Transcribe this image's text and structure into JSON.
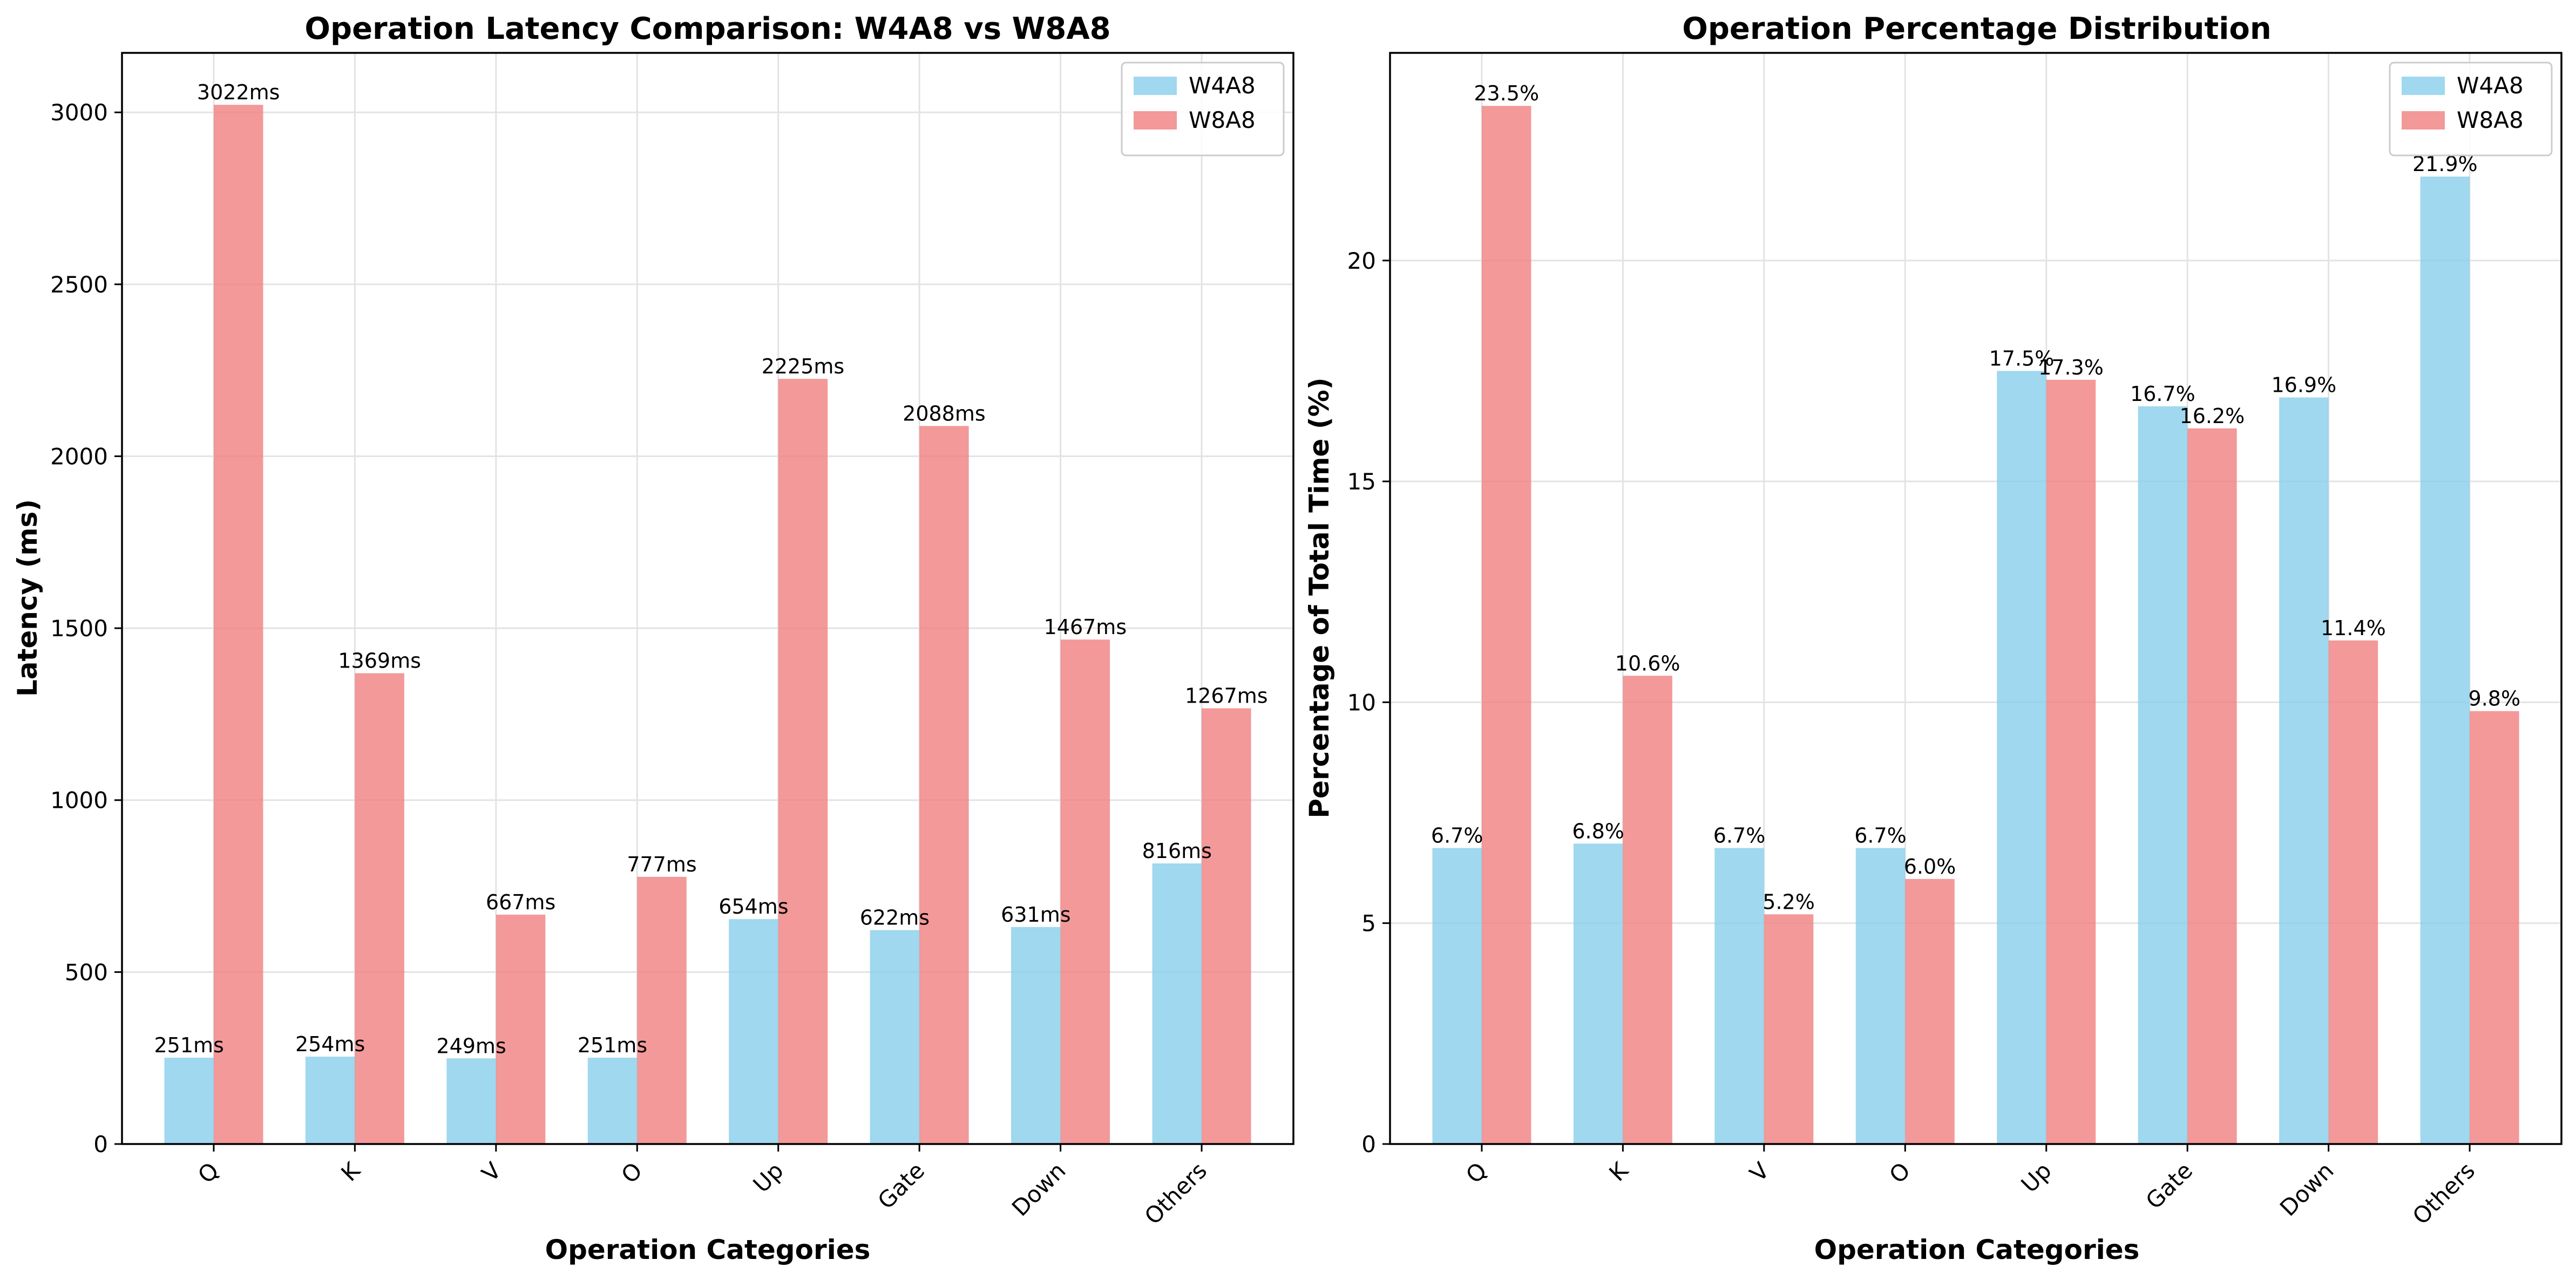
{
  "chart_data": [
    {
      "type": "bar",
      "title": "Operation Latency Comparison: W4A8 vs W8A8",
      "xlabel": "Operation Categories",
      "ylabel": "Latency (ms)",
      "categories": [
        "Q",
        "K",
        "V",
        "O",
        "Up",
        "Gate",
        "Down",
        "Others"
      ],
      "series": [
        {
          "name": "W4A8",
          "color": "#87CEEB",
          "values": [
            251,
            254,
            249,
            251,
            654,
            622,
            631,
            816
          ]
        },
        {
          "name": "W8A8",
          "color": "#F08080",
          "values": [
            3022,
            1369,
            667,
            777,
            2225,
            2088,
            1467,
            1267
          ]
        }
      ],
      "data_labels": {
        "W4A8": [
          "251ms",
          "254ms",
          "249ms",
          "251ms",
          "654ms",
          "622ms",
          "631ms",
          "816ms"
        ],
        "W8A8": [
          "3022ms",
          "1369ms",
          "667ms",
          "777ms",
          "2225ms",
          "2088ms",
          "1467ms",
          "1267ms"
        ]
      },
      "ylim": [
        0,
        3173
      ],
      "yticks": [
        0,
        500,
        1000,
        1500,
        2000,
        2500,
        3000
      ],
      "grid": true,
      "legend_position": "top-right"
    },
    {
      "type": "bar",
      "title": "Operation Percentage Distribution",
      "xlabel": "Operation Categories",
      "ylabel": "Percentage of Total Time (%)",
      "categories": [
        "Q",
        "K",
        "V",
        "O",
        "Up",
        "Gate",
        "Down",
        "Others"
      ],
      "series": [
        {
          "name": "W4A8",
          "color": "#87CEEB",
          "values": [
            6.7,
            6.8,
            6.7,
            6.7,
            17.5,
            16.7,
            16.9,
            21.9
          ]
        },
        {
          "name": "W8A8",
          "color": "#F08080",
          "values": [
            23.5,
            10.6,
            5.2,
            6.0,
            17.3,
            16.2,
            11.4,
            9.8
          ]
        }
      ],
      "data_labels": {
        "W4A8": [
          "6.7%",
          "6.8%",
          "6.7%",
          "6.7%",
          "17.5%",
          "16.7%",
          "16.9%",
          "21.9%"
        ],
        "W8A8": [
          "23.5%",
          "10.6%",
          "5.2%",
          "6.0%",
          "17.3%",
          "16.2%",
          "11.4%",
          "9.8%"
        ]
      },
      "ylim": [
        0,
        24.7
      ],
      "yticks": [
        0,
        5,
        10,
        15,
        20
      ],
      "grid": true,
      "legend_position": "top-right"
    }
  ]
}
